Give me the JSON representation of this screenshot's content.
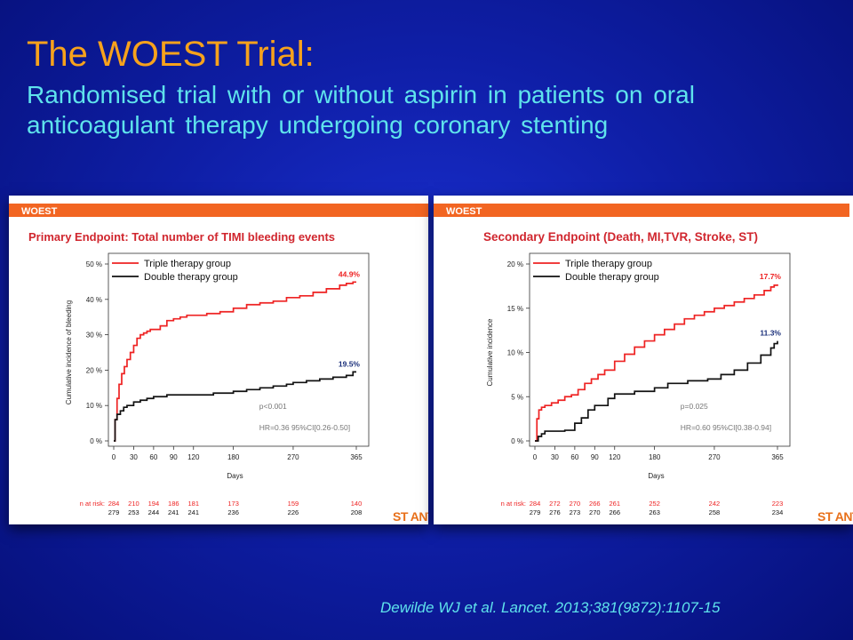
{
  "slide": {
    "title": "The WOEST Trial:",
    "subtitle": "Randomised trial  with or without aspirin in patients on oral anticoagulant therapy undergoing coronary stenting",
    "citation": "Dewilde WJ et al. Lancet. 2013;381(9872):1107-15"
  },
  "colors": {
    "triple": "#ee2222",
    "double": "#111111",
    "header_bar": "#f26522",
    "title_text": "#f7a21c",
    "subtitle_text": "#5fe3ec"
  },
  "chart_data": [
    {
      "type": "line",
      "header": "WOEST",
      "title": "Primary Endpoint:  Total number of TIMI bleeding events",
      "xlabel": "Days",
      "ylabel": "Cumulative incidence of bleeding",
      "xlim": [
        0,
        365
      ],
      "ylim": [
        0,
        50
      ],
      "x_ticks": [
        0,
        30,
        60,
        90,
        120,
        180,
        270,
        365
      ],
      "y_ticks": [
        0,
        10,
        20,
        30,
        40,
        50
      ],
      "y_tick_labels": [
        "0 %",
        "10 %",
        "20 %",
        "30 %",
        "40 %",
        "50 %"
      ],
      "legend_position": "top-left",
      "series": [
        {
          "name": "Triple therapy group",
          "color_key": "triple",
          "end_label": "44.9%",
          "x": [
            0,
            2,
            5,
            8,
            12,
            16,
            20,
            25,
            30,
            35,
            40,
            45,
            50,
            55,
            60,
            70,
            80,
            90,
            100,
            110,
            120,
            140,
            160,
            180,
            200,
            220,
            240,
            260,
            280,
            300,
            320,
            340,
            350,
            360,
            365
          ],
          "y": [
            0,
            6,
            12,
            16,
            19,
            21,
            23,
            25,
            27,
            29,
            30,
            30.5,
            31,
            31.5,
            31.5,
            32.5,
            34,
            34.5,
            35,
            35.5,
            35.5,
            36,
            36.5,
            37.5,
            38.5,
            39,
            39.5,
            40.5,
            41,
            42,
            43,
            44,
            44.5,
            44.9,
            44.9
          ]
        },
        {
          "name": "Double therapy group",
          "color_key": "double",
          "end_label": "19.5%",
          "x": [
            0,
            2,
            5,
            10,
            15,
            20,
            30,
            40,
            50,
            60,
            80,
            100,
            120,
            150,
            180,
            200,
            220,
            240,
            260,
            270,
            290,
            310,
            330,
            350,
            360,
            365
          ],
          "y": [
            0,
            6,
            7.5,
            8.5,
            9.5,
            10,
            11,
            11.5,
            12,
            12.5,
            13,
            13,
            13,
            13.5,
            14,
            14.5,
            15,
            15.5,
            16,
            16.5,
            17,
            17.5,
            18,
            18.5,
            19.5,
            19.5
          ]
        }
      ],
      "annotations": [
        "p<0.001",
        "HR=0.36  95%CI[0.26-0.50]"
      ],
      "risk_table": {
        "label": "n at risk:",
        "rows": [
          {
            "color_key": "triple",
            "values": [
              "284",
              "210",
              "194",
              "186",
              "181",
              "173",
              "159",
              "140"
            ]
          },
          {
            "color_key": "double",
            "values": [
              "279",
              "253",
              "244",
              "241",
              "241",
              "236",
              "226",
              "208"
            ]
          }
        ]
      },
      "logo": {
        "text": "ST ANTON",
        "icon": "st-antonius-logo"
      }
    },
    {
      "type": "line",
      "header": "WOEST",
      "title": "Secondary Endpoint (Death, MI,TVR, Stroke, ST)",
      "xlabel": "Days",
      "ylabel": "Cumulative incidence",
      "xlim": [
        0,
        365
      ],
      "ylim": [
        0,
        20
      ],
      "x_ticks": [
        0,
        30,
        60,
        90,
        120,
        180,
        270,
        365
      ],
      "y_ticks": [
        0,
        5,
        10,
        15,
        20
      ],
      "y_tick_labels": [
        "0 %",
        "5 %",
        "10 %",
        "15 %",
        "20 %"
      ],
      "legend_position": "top-left",
      "series": [
        {
          "name": "Triple therapy group",
          "color_key": "triple",
          "end_label": "17.7%",
          "x": [
            0,
            3,
            6,
            10,
            15,
            25,
            35,
            45,
            55,
            65,
            75,
            85,
            95,
            105,
            120,
            135,
            150,
            165,
            180,
            195,
            210,
            225,
            240,
            255,
            270,
            285,
            300,
            315,
            330,
            345,
            355,
            360,
            365
          ],
          "y": [
            0,
            2.5,
            3.5,
            3.8,
            4,
            4.3,
            4.6,
            5,
            5.2,
            5.8,
            6.5,
            7,
            7.5,
            8,
            9,
            9.8,
            10.6,
            11.3,
            12,
            12.6,
            13.2,
            13.8,
            14.2,
            14.6,
            15,
            15.3,
            15.7,
            16.1,
            16.5,
            17,
            17.4,
            17.6,
            17.7
          ]
        },
        {
          "name": "Double therapy group",
          "color_key": "double",
          "end_label": "11.3%",
          "x": [
            0,
            5,
            10,
            15,
            30,
            45,
            60,
            70,
            80,
            90,
            110,
            120,
            150,
            180,
            200,
            230,
            260,
            280,
            300,
            320,
            340,
            355,
            360,
            365
          ],
          "y": [
            0,
            0.5,
            0.8,
            1.1,
            1.1,
            1.2,
            2,
            2.6,
            3.5,
            4,
            4.8,
            5.3,
            5.6,
            6,
            6.5,
            6.8,
            7,
            7.5,
            8,
            8.8,
            9.7,
            10.5,
            11,
            11.3
          ]
        }
      ],
      "annotations": [
        "p=0.025",
        "HR=0.60  95%CI[0.38-0.94]"
      ],
      "risk_table": {
        "label": "n at risk:",
        "rows": [
          {
            "color_key": "triple",
            "values": [
              "284",
              "272",
              "270",
              "266",
              "261",
              "252",
              "242",
              "223"
            ]
          },
          {
            "color_key": "double",
            "values": [
              "279",
              "276",
              "273",
              "270",
              "266",
              "263",
              "258",
              "234"
            ]
          }
        ]
      },
      "logo": {
        "text": "ST ANTON",
        "icon": "st-antonius-logo"
      }
    }
  ]
}
